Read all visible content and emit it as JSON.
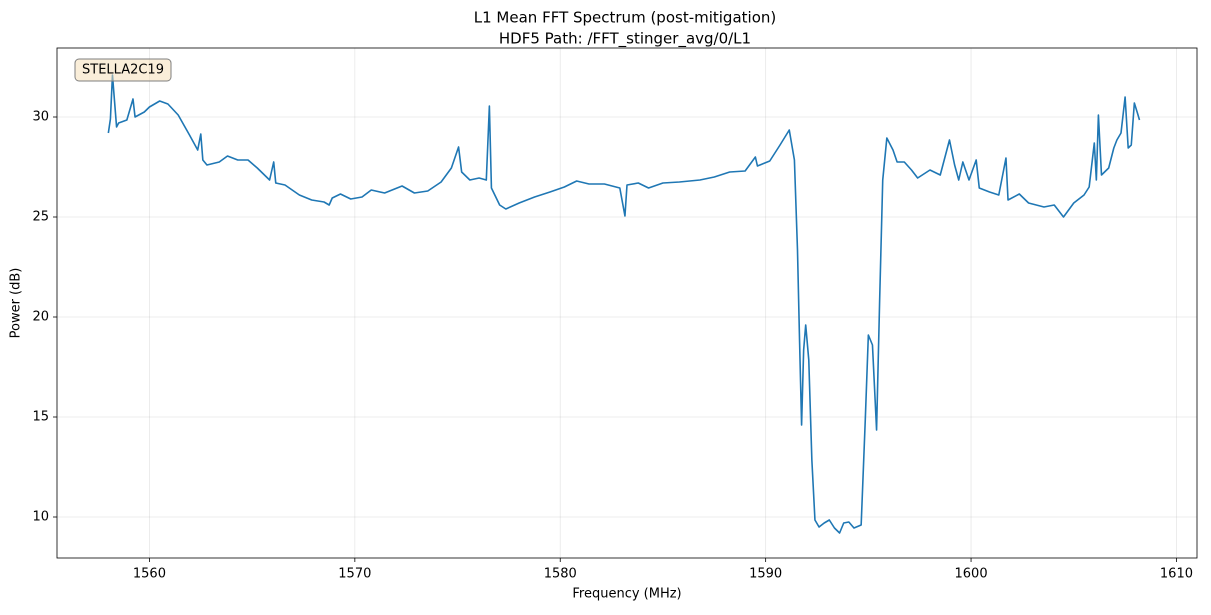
{
  "chart_data": {
    "type": "line",
    "title": "L1 Mean FFT Spectrum (post-mitigation)",
    "subtitle": "HDF5 Path: /FFT_stinger_avg/0/L1",
    "x_label": "Frequency (MHz)",
    "y_label": "Power (dB)",
    "annotation": "STELLA2C19",
    "xlim": [
      1555.5,
      1611
    ],
    "ylim": [
      7.95,
      33.45
    ],
    "xticks": [
      1560,
      1570,
      1580,
      1590,
      1600,
      1610
    ],
    "yticks": [
      10,
      15,
      20,
      25,
      30
    ],
    "grid": true,
    "series": [
      {
        "color": "#1f77b4",
        "x": [
          1558.0,
          1558.1,
          1558.2,
          1558.4,
          1558.5,
          1558.9,
          1559.2,
          1559.3,
          1559.75,
          1560.0,
          1560.5,
          1560.9,
          1561.4,
          1561.95,
          1562.35,
          1562.5,
          1562.6,
          1562.8,
          1563.4,
          1563.8,
          1564.3,
          1564.8,
          1565.25,
          1565.85,
          1566.05,
          1566.15,
          1566.6,
          1567.3,
          1567.9,
          1568.5,
          1568.75,
          1568.9,
          1569.3,
          1569.8,
          1570.35,
          1570.8,
          1571.45,
          1572.3,
          1572.9,
          1573.55,
          1574.2,
          1574.7,
          1575.05,
          1575.2,
          1575.6,
          1576.05,
          1576.4,
          1576.55,
          1576.65,
          1577.05,
          1577.35,
          1578.0,
          1578.75,
          1579.5,
          1580.2,
          1580.8,
          1581.4,
          1582.15,
          1582.9,
          1583.15,
          1583.25,
          1583.8,
          1584.3,
          1585.0,
          1585.8,
          1586.8,
          1587.5,
          1588.25,
          1589.0,
          1589.5,
          1589.6,
          1590.2,
          1590.7,
          1591.15,
          1591.4,
          1591.55,
          1591.65,
          1591.75,
          1591.85,
          1591.95,
          1592.1,
          1592.25,
          1592.4,
          1592.6,
          1592.85,
          1593.1,
          1593.35,
          1593.6,
          1593.8,
          1594.05,
          1594.3,
          1594.65,
          1594.85,
          1595.0,
          1595.2,
          1595.4,
          1595.55,
          1595.7,
          1595.9,
          1596.2,
          1596.4,
          1596.75,
          1597.1,
          1597.4,
          1598.0,
          1598.5,
          1598.95,
          1599.2,
          1599.4,
          1599.6,
          1599.9,
          1600.25,
          1600.4,
          1600.9,
          1601.35,
          1601.7,
          1601.8,
          1602.35,
          1602.8,
          1603.55,
          1604.05,
          1604.5,
          1605.0,
          1605.5,
          1605.75,
          1606.0,
          1606.1,
          1606.2,
          1606.35,
          1606.7,
          1606.95,
          1607.1,
          1607.3,
          1607.5,
          1607.65,
          1607.8,
          1607.95,
          1608.1,
          1608.2
        ],
        "values": [
          29.2,
          29.9,
          32.1,
          29.5,
          29.7,
          29.85,
          30.9,
          30.0,
          30.25,
          30.5,
          30.8,
          30.65,
          30.1,
          29.1,
          28.35,
          29.15,
          27.85,
          27.6,
          27.75,
          28.05,
          27.85,
          27.85,
          27.45,
          26.85,
          27.75,
          26.7,
          26.6,
          26.1,
          25.85,
          25.75,
          25.6,
          25.95,
          26.15,
          25.9,
          26.0,
          26.35,
          26.2,
          26.55,
          26.2,
          26.3,
          26.75,
          27.45,
          28.5,
          27.25,
          26.85,
          26.95,
          26.85,
          30.55,
          26.45,
          25.6,
          25.4,
          25.7,
          26.0,
          26.25,
          26.5,
          26.8,
          26.65,
          26.65,
          26.45,
          25.05,
          26.6,
          26.7,
          26.45,
          26.7,
          26.75,
          26.85,
          27.0,
          27.25,
          27.3,
          28.0,
          27.55,
          27.8,
          28.6,
          29.35,
          27.85,
          23.35,
          18.85,
          14.6,
          18.35,
          19.6,
          17.85,
          12.85,
          9.85,
          9.5,
          9.7,
          9.85,
          9.45,
          9.2,
          9.7,
          9.75,
          9.45,
          9.6,
          14.85,
          19.1,
          18.6,
          14.35,
          20.85,
          26.85,
          28.95,
          28.35,
          27.75,
          27.75,
          27.35,
          26.95,
          27.35,
          27.1,
          28.85,
          27.6,
          26.85,
          27.75,
          26.85,
          27.85,
          26.45,
          26.25,
          26.1,
          27.95,
          25.85,
          26.15,
          25.7,
          25.5,
          25.6,
          25.0,
          25.7,
          26.1,
          26.5,
          28.7,
          26.85,
          30.1,
          27.1,
          27.45,
          28.45,
          28.85,
          29.2,
          31.0,
          28.45,
          28.6,
          30.7,
          30.2,
          29.85
        ]
      }
    ]
  }
}
